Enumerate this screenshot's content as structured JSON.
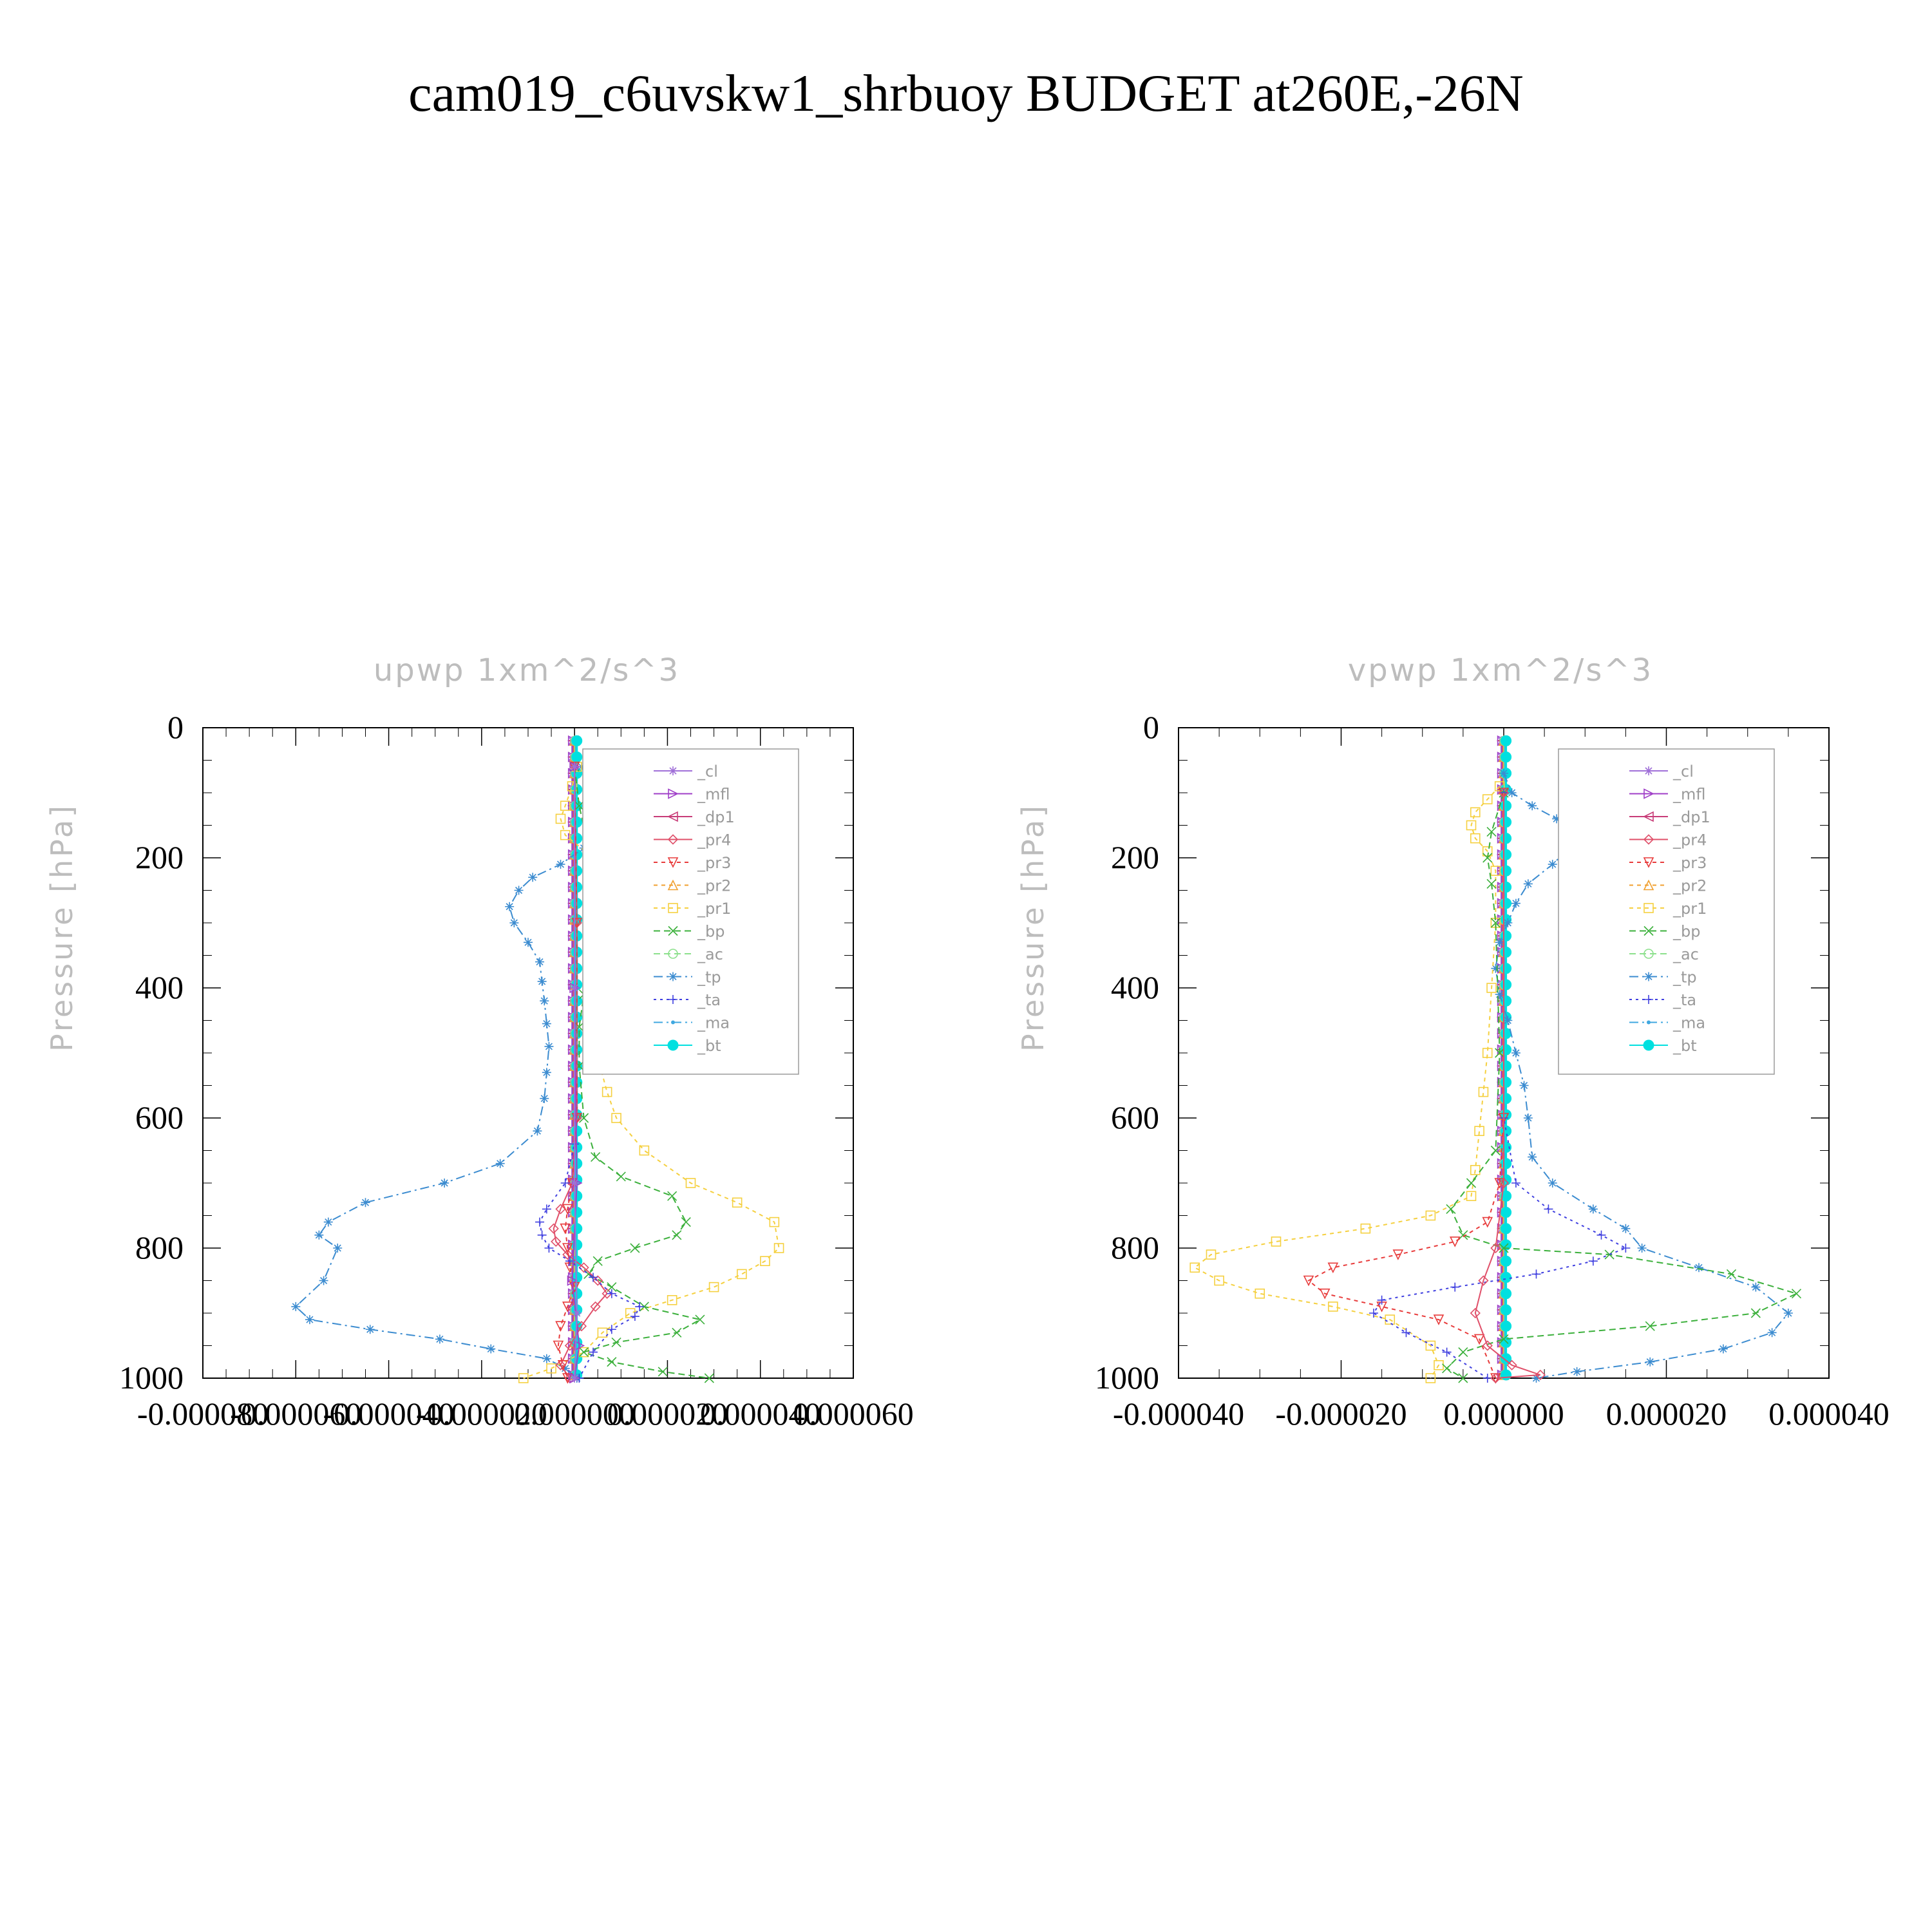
{
  "figure": {
    "title": "cam019_c6uvskw1_shrbuoy  BUDGET at260E,-26N"
  },
  "legend_entries": [
    {
      "key": "cl",
      "label": "_cl",
      "color": "#a070d8",
      "marker": "star",
      "dash": "none"
    },
    {
      "key": "mfl",
      "label": "_mfl",
      "color": "#a040c8",
      "marker": "tri-right",
      "dash": "none"
    },
    {
      "key": "dp1",
      "label": "_dp1",
      "color": "#c83c78",
      "marker": "tri-left",
      "dash": "none"
    },
    {
      "key": "pr4",
      "label": "_pr4",
      "color": "#e0506a",
      "marker": "diamond",
      "dash": "none"
    },
    {
      "key": "pr3",
      "label": "_pr3",
      "color": "#e83c3c",
      "marker": "tri-down",
      "dash": "6,6"
    },
    {
      "key": "pr2",
      "label": "_pr2",
      "color": "#f0a030",
      "marker": "tri-up",
      "dash": "6,6"
    },
    {
      "key": "pr1",
      "label": "_pr1",
      "color": "#f5d040",
      "marker": "square",
      "dash": "6,6"
    },
    {
      "key": "bp",
      "label": "_bp",
      "color": "#3cb03c",
      "marker": "x",
      "dash": "10,6"
    },
    {
      "key": "ac",
      "label": "_ac",
      "color": "#8ce08c",
      "marker": "circle",
      "dash": "10,6"
    },
    {
      "key": "tp",
      "label": "_tp",
      "color": "#3c8cd0",
      "marker": "asterisk",
      "dash": "14,6,3,6"
    },
    {
      "key": "ta",
      "label": "_ta",
      "color": "#4040e0",
      "marker": "plus",
      "dash": "4,6"
    },
    {
      "key": "ma",
      "label": "_ma",
      "color": "#40a8e0",
      "marker": "dot",
      "dash": "14,6,3,6"
    },
    {
      "key": "bt",
      "label": "_bt",
      "color": "#00e0e0",
      "marker": "bigdot",
      "dash": "none"
    }
  ],
  "chart_data": [
    {
      "type": "line",
      "title": "upwp    1xm^2/s^3",
      "xlabel": "",
      "ylabel": "Pressure [hPa]",
      "xlim": [
        -8e-05,
        6e-05
      ],
      "ylim": [
        1000,
        0
      ],
      "x_tick_labels": [
        "-0.000080",
        "-0.000060",
        "-0.000040",
        "-0.000020",
        "0.000000",
        "0.000020",
        "0.000040",
        "0.000060"
      ],
      "x_ticks": [
        -8e-05,
        -6e-05,
        -4e-05,
        -2e-05,
        0,
        2e-05,
        4e-05,
        6e-05
      ],
      "y_tick_labels": [
        "0",
        "200",
        "400",
        "600",
        "800",
        "1000"
      ],
      "y_ticks": [
        0,
        200,
        400,
        600,
        800,
        1000
      ],
      "legend": "top-right",
      "series": [
        {
          "key": "tp",
          "x": [
            1.5e-06,
            3.5e-06,
            7e-06,
            8.5e-06,
            6e-06,
            2e-06,
            -3e-06,
            -9e-06,
            -1.2e-05,
            -1.4e-05,
            -1.3e-05,
            -1e-05,
            -7.5e-06,
            -7e-06,
            -6.5e-06,
            -6e-06,
            -5.5e-06,
            -6e-06,
            -6.5e-06,
            -8e-06,
            -1.6e-05,
            -2.8e-05,
            -4.5e-05,
            -5.3e-05,
            -5.5e-05,
            -5.1e-05,
            -5.4e-05,
            -6e-05,
            -5.7e-05,
            -4.4e-05,
            -2.9e-05,
            -1.8e-05,
            -6e-06,
            -2e-06,
            5e-07
          ],
          "y": [
            60,
            90,
            120,
            145,
            165,
            185,
            210,
            230,
            250,
            275,
            300,
            330,
            360,
            390,
            420,
            455,
            490,
            530,
            570,
            620,
            670,
            700,
            730,
            760,
            780,
            800,
            850,
            890,
            910,
            925,
            940,
            955,
            970,
            985,
            1000
          ]
        },
        {
          "key": "pr1",
          "x": [
            5e-07,
            -5e-07,
            -2e-06,
            -3e-06,
            -2e-06,
            4e-06,
            7e-06,
            8.5e-06,
            8.5e-06,
            7e-06,
            5.5e-06,
            4.5e-06,
            4e-06,
            4e-06,
            4.5e-06,
            5.5e-06,
            7e-06,
            9e-06,
            1.5e-05,
            2.5e-05,
            3.5e-05,
            4.3e-05,
            4.4e-05,
            4.1e-05,
            3.6e-05,
            3e-05,
            2.1e-05,
            1.2e-05,
            6e-06,
            2e-06,
            -5e-06,
            -1.1e-05
          ],
          "y": [
            60,
            90,
            120,
            140,
            165,
            200,
            220,
            240,
            260,
            290,
            320,
            360,
            400,
            440,
            480,
            520,
            560,
            600,
            650,
            700,
            730,
            760,
            800,
            820,
            840,
            860,
            880,
            900,
            930,
            960,
            985,
            1000
          ]
        },
        {
          "key": "bp",
          "x": [
            0,
            1e-06,
            3.5e-06,
            7e-06,
            8.5e-06,
            7e-06,
            5e-06,
            4.5e-06,
            3e-06,
            2e-06,
            1e-06,
            1e-06,
            2e-06,
            4.5e-06,
            1e-05,
            2.1e-05,
            2.4e-05,
            2.2e-05,
            1.3e-05,
            5e-06,
            3e-06,
            8e-06,
            1.5e-05,
            2.7e-05,
            2.2e-05,
            9e-06,
            2e-06,
            8e-06,
            1.9e-05,
            2.9e-05
          ],
          "y": [
            60,
            120,
            200,
            230,
            250,
            280,
            310,
            340,
            380,
            410,
            460,
            520,
            600,
            660,
            690,
            720,
            760,
            780,
            800,
            820,
            840,
            860,
            890,
            910,
            930,
            945,
            960,
            975,
            990,
            1000
          ]
        },
        {
          "key": "pr4",
          "x": [
            0,
            5e-07,
            5e-07,
            -5e-07,
            -3e-06,
            -4.5e-06,
            -4e-06,
            -1.5e-06,
            2e-06,
            5e-06,
            7e-06,
            4.5e-06,
            1.5e-06,
            -1e-06,
            -3e-06,
            -1e-06
          ],
          "y": [
            60,
            300,
            600,
            700,
            740,
            770,
            790,
            810,
            830,
            850,
            870,
            890,
            920,
            950,
            980,
            1000
          ]
        },
        {
          "key": "pr3",
          "x": [
            0,
            5e-07,
            5e-07,
            -5e-07,
            -1.5e-06,
            -2e-06,
            -1.5e-06,
            -1e-06,
            0,
            -1.5e-06,
            -3e-06,
            -3.5e-06,
            -2.5e-06,
            -1.5e-06
          ],
          "y": [
            60,
            300,
            600,
            700,
            740,
            770,
            800,
            830,
            860,
            890,
            920,
            950,
            980,
            1000
          ]
        },
        {
          "key": "ta",
          "x": [
            0,
            0,
            0,
            -2e-06,
            -6e-06,
            -7.5e-06,
            -7e-06,
            -5.5e-06,
            -1e-06,
            4e-06,
            8e-06,
            1.4e-05,
            1.3e-05,
            8e-06,
            4e-06,
            1e-06
          ],
          "y": [
            60,
            400,
            640,
            700,
            740,
            760,
            780,
            800,
            820,
            845,
            870,
            890,
            905,
            925,
            960,
            1000
          ]
        },
        {
          "key": "mfl",
          "x": [
            0,
            0,
            5e-07,
            -5e-07,
            1e-06,
            0
          ],
          "y": [
            60,
            400,
            700,
            850,
            950,
            1000
          ]
        },
        {
          "key": "cl",
          "x": [
            0,
            0,
            0,
            5e-07,
            0
          ],
          "y": [
            60,
            400,
            700,
            900,
            1000
          ]
        }
      ],
      "zero_line_series": [
        "cl",
        "mfl",
        "dp1",
        "pr2",
        "ac",
        "ma",
        "bt"
      ]
    },
    {
      "type": "line",
      "title": "vpwp    1xm^2/s^3",
      "xlabel": "",
      "ylabel": "Pressure [hPa]",
      "xlim": [
        -4e-05,
        4e-05
      ],
      "ylim": [
        1000,
        0
      ],
      "x_tick_labels": [
        "-0.000040",
        "-0.000020",
        "0.000000",
        "0.000020",
        "0.000040"
      ],
      "x_ticks": [
        -4e-05,
        -2e-05,
        0,
        2e-05,
        4e-05
      ],
      "y_tick_labels": [
        "0",
        "200",
        "400",
        "600",
        "800",
        "1000"
      ],
      "y_ticks": [
        0,
        200,
        400,
        600,
        800,
        1000
      ],
      "legend": "top-right",
      "series": [
        {
          "key": "tp",
          "x": [
            0,
            1e-06,
            3.5e-06,
            6.5e-06,
            8e-06,
            8.5e-06,
            6e-06,
            3e-06,
            1.5e-06,
            5e-07,
            -5e-07,
            -1e-06,
            -5e-07,
            5e-07,
            1.5e-06,
            2.5e-06,
            3e-06,
            3.5e-06,
            6e-06,
            1.1e-05,
            1.5e-05,
            1.7e-05,
            2.4e-05,
            3.1e-05,
            3.5e-05,
            3.3e-05,
            2.7e-05,
            1.8e-05,
            9e-06,
            4e-06
          ],
          "y": [
            70,
            100,
            120,
            140,
            160,
            180,
            210,
            240,
            270,
            300,
            330,
            370,
            410,
            450,
            500,
            550,
            600,
            660,
            700,
            740,
            770,
            800,
            830,
            860,
            900,
            930,
            955,
            975,
            990,
            1000
          ]
        },
        {
          "key": "pr1",
          "x": [
            -5e-07,
            -2e-06,
            -3.5e-06,
            -4e-06,
            -3.5e-06,
            -2e-06,
            -1e-06,
            -1e-06,
            -1.5e-06,
            -2e-06,
            -2.5e-06,
            -3e-06,
            -3.5e-06,
            -4e-06,
            -9e-06,
            -1.7e-05,
            -2.8e-05,
            -3.6e-05,
            -3.8e-05,
            -3.5e-05,
            -3e-05,
            -2.1e-05,
            -1.4e-05,
            -9e-06,
            -8e-06,
            -9e-06
          ],
          "y": [
            90,
            110,
            130,
            150,
            170,
            190,
            220,
            300,
            400,
            500,
            560,
            620,
            680,
            720,
            750,
            770,
            790,
            810,
            830,
            850,
            870,
            890,
            910,
            950,
            980,
            1000
          ]
        },
        {
          "key": "bp",
          "x": [
            0,
            -1.5e-06,
            -2e-06,
            -1.5e-06,
            -1e-06,
            -5e-07,
            -1e-06,
            -4e-06,
            -6.5e-06,
            -5e-06,
            0,
            1.3e-05,
            2.8e-05,
            3.6e-05,
            3.1e-05,
            1.8e-05,
            0,
            -5e-06,
            -7e-06,
            -5e-06
          ],
          "y": [
            100,
            160,
            200,
            240,
            300,
            500,
            650,
            700,
            740,
            780,
            800,
            810,
            840,
            870,
            900,
            920,
            940,
            960,
            985,
            1000
          ]
        },
        {
          "key": "pr3",
          "x": [
            0,
            0,
            -5e-07,
            -2e-06,
            -6e-06,
            -1.3e-05,
            -2.1e-05,
            -2.4e-05,
            -2.2e-05,
            -1.5e-05,
            -8e-06,
            -3e-06,
            -1e-06
          ],
          "y": [
            100,
            600,
            700,
            760,
            790,
            810,
            830,
            850,
            870,
            890,
            910,
            940,
            1000
          ]
        },
        {
          "key": "ta",
          "x": [
            0,
            0,
            1.5e-06,
            5.5e-06,
            1.2e-05,
            1.5e-05,
            1.1e-05,
            4e-06,
            -6e-06,
            -1.5e-05,
            -1.6e-05,
            -1.2e-05,
            -7e-06,
            -2e-06
          ],
          "y": [
            100,
            600,
            700,
            740,
            780,
            800,
            820,
            840,
            860,
            880,
            900,
            930,
            960,
            1000
          ]
        },
        {
          "key": "pr4",
          "x": [
            0,
            0,
            -1e-06,
            -2.5e-06,
            -3.5e-06,
            -2e-06,
            1e-06,
            4.5e-06,
            -1e-06
          ],
          "y": [
            100,
            700,
            800,
            850,
            900,
            950,
            980,
            995,
            1000
          ]
        }
      ],
      "zero_line_series": [
        "cl",
        "mfl",
        "dp1",
        "pr2",
        "ac",
        "ma",
        "bt"
      ]
    }
  ]
}
